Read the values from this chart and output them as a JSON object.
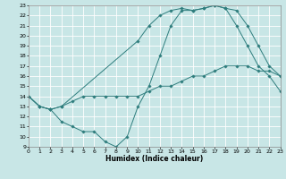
{
  "xlabel": "Humidex (Indice chaleur)",
  "xlim": [
    0,
    23
  ],
  "ylim": [
    9,
    23
  ],
  "xticks": [
    0,
    1,
    2,
    3,
    4,
    5,
    6,
    7,
    8,
    9,
    10,
    11,
    12,
    13,
    14,
    15,
    16,
    17,
    18,
    19,
    20,
    21,
    22,
    23
  ],
  "yticks": [
    9,
    10,
    11,
    12,
    13,
    14,
    15,
    16,
    17,
    18,
    19,
    20,
    21,
    22,
    23
  ],
  "bg_color": "#c8e6e6",
  "grid_color": "#ffffff",
  "line_color": "#2e7d7d",
  "lines": [
    {
      "x": [
        0,
        1,
        2,
        3,
        4,
        5,
        6,
        7,
        8,
        9,
        10,
        11,
        12,
        13,
        14,
        15,
        16,
        17,
        18,
        19,
        20,
        21,
        22,
        23
      ],
      "y": [
        14,
        13,
        12.7,
        13,
        13.5,
        14,
        14,
        14,
        14,
        14,
        14,
        14.5,
        15,
        15,
        15.5,
        16,
        16,
        16.5,
        17,
        17,
        17,
        16.5,
        16.5,
        16
      ]
    },
    {
      "x": [
        0,
        1,
        2,
        3,
        10,
        11,
        12,
        13,
        14,
        15,
        16,
        17,
        18,
        19,
        20,
        21,
        22,
        23
      ],
      "y": [
        14,
        13,
        12.7,
        13,
        19.5,
        21,
        22,
        22.5,
        22.7,
        22.5,
        22.7,
        23,
        22.7,
        22.5,
        21,
        19,
        17,
        16
      ]
    },
    {
      "x": [
        0,
        1,
        2,
        3,
        4,
        5,
        6,
        7,
        8,
        9,
        10,
        11,
        12,
        13,
        14,
        15,
        16,
        17,
        18,
        19,
        20,
        21,
        22,
        23
      ],
      "y": [
        14,
        13,
        12.7,
        11.5,
        11,
        10.5,
        10.5,
        9.5,
        9,
        10,
        13,
        15,
        18,
        21,
        22.5,
        22.5,
        22.7,
        23,
        22.7,
        21,
        19,
        17,
        16,
        14.5
      ]
    }
  ]
}
